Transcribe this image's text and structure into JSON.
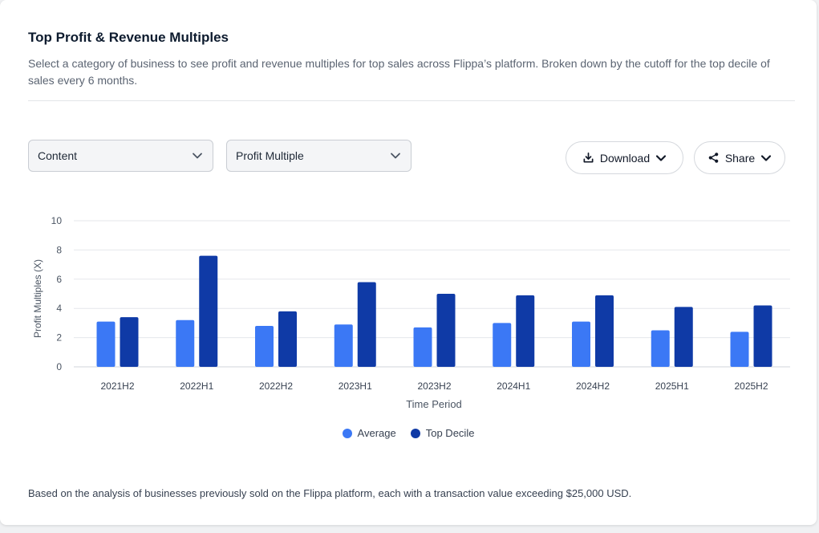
{
  "header": {
    "title": "Top Profit & Revenue Multiples",
    "description": "Select a category of business to see profit and revenue multiples for top sales across Flippa’s platform. Broken down by the cutoff for the top decile of sales every 6 months."
  },
  "controls": {
    "category_value": "Content",
    "metric_value": "Profit Multiple",
    "download_label": "Download",
    "share_label": "Share"
  },
  "footnote": "Based on the analysis of businesses previously sold on the Flippa platform, each with a transaction value exceeding $25,000 USD.",
  "colors": {
    "average": "#3b78f5",
    "top_decile": "#0f3aa6",
    "grid": "#e5e7eb"
  },
  "chart_data": {
    "type": "bar",
    "title": "",
    "xlabel": "Time Period",
    "ylabel": "Profit Multiples (X)",
    "ylim": [
      0,
      10
    ],
    "yticks": [
      0,
      2,
      4,
      6,
      8,
      10
    ],
    "grid": true,
    "legend": "bottom-center",
    "categories": [
      "2021H2",
      "2022H1",
      "2022H2",
      "2023H1",
      "2023H2",
      "2024H1",
      "2024H2",
      "2025H1",
      "2025H2"
    ],
    "series": [
      {
        "name": "Average",
        "values": [
          3.1,
          3.2,
          2.8,
          2.9,
          2.7,
          3.0,
          3.1,
          2.5,
          2.4
        ]
      },
      {
        "name": "Top Decile",
        "values": [
          3.4,
          7.6,
          3.8,
          5.8,
          5.0,
          4.9,
          4.9,
          4.1,
          4.2
        ]
      }
    ]
  }
}
